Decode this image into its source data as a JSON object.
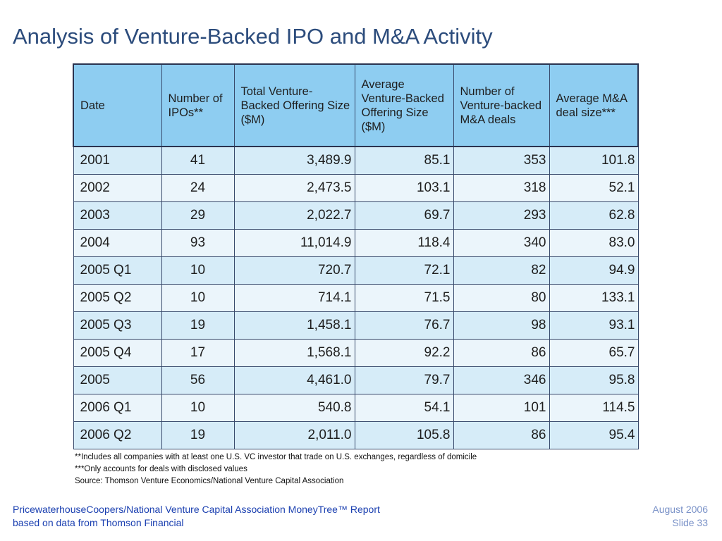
{
  "slide": {
    "title": "Analysis of Venture-Backed IPO and M&A Activity"
  },
  "table": {
    "headers": [
      "Date",
      "Number of IPOs**",
      "Total Venture-Backed Offering Size ($M)",
      "Average Venture-Backed Offering Size ($M)",
      "Number of Venture-backed M&A deals",
      "Average M&A deal size***"
    ],
    "rows": [
      [
        "2001",
        "41",
        "3,489.9",
        "85.1",
        "353",
        "101.8"
      ],
      [
        "2002",
        "24",
        "2,473.5",
        "103.1",
        "318",
        "52.1"
      ],
      [
        "2003",
        "29",
        "2,022.7",
        "69.7",
        "293",
        "62.8"
      ],
      [
        "2004",
        "93",
        "11,014.9",
        "118.4",
        "340",
        "83.0"
      ],
      [
        "2005 Q1",
        "10",
        "720.7",
        "72.1",
        "82",
        "94.9"
      ],
      [
        "2005 Q2",
        "10",
        "714.1",
        "71.5",
        "80",
        "133.1"
      ],
      [
        "2005 Q3",
        "19",
        "1,458.1",
        "76.7",
        "98",
        "93.1"
      ],
      [
        "2005 Q4",
        "17",
        "1,568.1",
        "92.2",
        "86",
        "65.7"
      ],
      [
        "2005",
        "56",
        "4,461.0",
        "79.7",
        "346",
        "95.8"
      ],
      [
        "2006 Q1",
        "10",
        "540.8",
        "54.1",
        "101",
        "114.5"
      ],
      [
        "2006 Q2",
        "19",
        "2,011.0",
        "105.8",
        "86",
        "95.4"
      ]
    ]
  },
  "notes": {
    "note1": "**Includes all companies with at least one U.S. VC investor that trade on U.S. exchanges, regardless of domicile",
    "note2": "***Only accounts for deals with disclosed values",
    "source": "Source: Thomson Venture Economics/National Venture Capital Association"
  },
  "footer": {
    "left_line1": "PricewaterhouseCoopers/National Venture Capital Association MoneyTree™ Report",
    "left_line2": "based on data from Thomson Financial",
    "date": "August 2006",
    "slide_number": "Slide 33"
  },
  "colors": {
    "title": "#2c4c7c",
    "header_bg": "#8ecdf1",
    "row_band_a": "#d6ecf8",
    "row_band_b": "#ebf5fb",
    "footer_left": "#1a3fb0",
    "footer_right": "#7a92c8"
  }
}
